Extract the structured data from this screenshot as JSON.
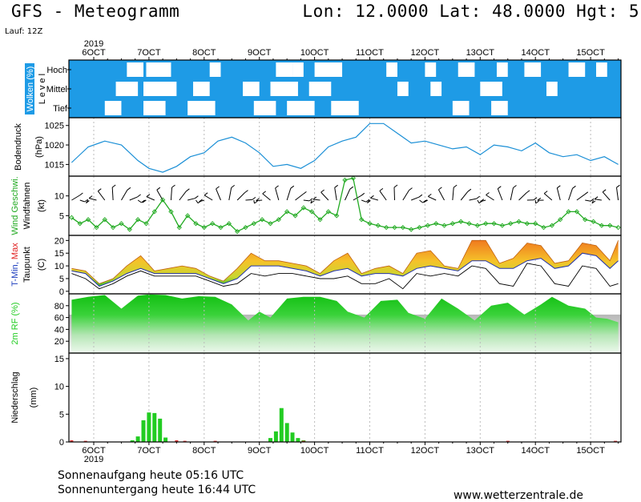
{
  "header": {
    "title": "GFS - Meteogramm",
    "location": "Lon: 12.0000 Lat: 48.0000 Hgt: 5",
    "run": "Lauf: 12Z"
  },
  "footer": {
    "sunrise": "Sonnenaufgang heute 05:16 UTC",
    "sunset": "Sonnenuntergang heute 16:44 UTC",
    "source": "www.wetterzentrale.de"
  },
  "colors": {
    "cloud_bg": "#1e9be6",
    "pressure_line": "#1a8fd6",
    "wind_speed": "#22aa22",
    "tmin_label": "#1f3fbf",
    "tmax_label": "#e02020",
    "humidity_fill": "#22cc22",
    "precip_bar": "#22cc22",
    "precip_red": "#dd3333",
    "panel_border": "#000000"
  },
  "chart_data": {
    "type": "line",
    "year": "2019",
    "x_labels": [
      "6OCT",
      "7OCT",
      "8OCT",
      "9OCT",
      "10OCT",
      "11OCT",
      "12OCT",
      "13OCT",
      "14OCT",
      "15OCT"
    ],
    "panels": [
      {
        "id": "clouds",
        "ylabel": "Wolken (%)",
        "ylabel2": "L e v e l",
        "levels": [
          "Hoch",
          "Mittel",
          "Tief"
        ],
        "cloud_gaps": {
          "Hoch": [
            [
              6.6,
              6.9
            ],
            [
              6.95,
              7.4
            ],
            [
              8.1,
              8.3
            ],
            [
              9.3,
              9.6
            ],
            [
              9.6,
              9.8
            ],
            [
              10.0,
              10.5
            ],
            [
              11.3,
              11.5
            ],
            [
              12.0,
              12.2
            ],
            [
              12.6,
              12.9
            ],
            [
              13.3,
              13.5
            ],
            [
              13.8,
              14.1
            ],
            [
              14.6,
              14.9
            ],
            [
              15.1,
              15.3
            ]
          ],
          "Mittel": [
            [
              6.4,
              6.8
            ],
            [
              6.9,
              7.5
            ],
            [
              7.8,
              8.1
            ],
            [
              8.7,
              9.0
            ],
            [
              9.2,
              9.7
            ],
            [
              9.9,
              10.3
            ],
            [
              11.5,
              11.7
            ],
            [
              12.1,
              12.3
            ],
            [
              13.0,
              13.4
            ],
            [
              14.2,
              14.4
            ]
          ],
          "Tief": [
            [
              6.2,
              6.5
            ],
            [
              6.9,
              7.3
            ],
            [
              7.7,
              8.2
            ],
            [
              8.9,
              9.3
            ],
            [
              9.5,
              10.0
            ],
            [
              10.3,
              10.8
            ],
            [
              12.5,
              12.8
            ],
            [
              13.2,
              13.5
            ]
          ]
        }
      },
      {
        "id": "pressure",
        "ylabel": "Bodendruck",
        "unit": "(hPa)",
        "ylim": [
          1012,
          1027
        ],
        "ticks": [
          1015,
          1020,
          1025
        ],
        "x": [
          5.6,
          5.9,
          6.2,
          6.5,
          6.8,
          7.0,
          7.25,
          7.5,
          7.75,
          8.0,
          8.25,
          8.5,
          8.75,
          9.0,
          9.25,
          9.5,
          9.75,
          10.0,
          10.25,
          10.5,
          10.75,
          11.0,
          11.25,
          11.5,
          11.75,
          12.0,
          12.25,
          12.5,
          12.75,
          13.0,
          13.25,
          13.5,
          13.75,
          14.0,
          14.25,
          14.5,
          14.75,
          15.0,
          15.25,
          15.5
        ],
        "values": [
          1015.5,
          1019.5,
          1021,
          1020,
          1016,
          1014,
          1013,
          1014.5,
          1017,
          1018,
          1021,
          1022,
          1020.5,
          1018,
          1014.5,
          1015,
          1014,
          1016,
          1019.5,
          1021,
          1022,
          1025.5,
          1025.5,
          1023,
          1020.5,
          1021,
          1020,
          1019,
          1019.5,
          1017.5,
          1020,
          1019.5,
          1018.5,
          1020.5,
          1018,
          1017,
          1017.5,
          1016,
          1017,
          1015
        ]
      },
      {
        "id": "wind",
        "ylabel": "Wind Geschwi.",
        "ylabel2": "Windfahnen",
        "unit": "(kt)",
        "ylim": [
          0,
          15
        ],
        "ticks": [
          5,
          10
        ],
        "x": [
          5.6,
          5.75,
          5.9,
          6.05,
          6.2,
          6.35,
          6.5,
          6.65,
          6.8,
          6.95,
          7.1,
          7.25,
          7.4,
          7.55,
          7.7,
          7.85,
          8.0,
          8.15,
          8.3,
          8.45,
          8.6,
          8.75,
          8.9,
          9.05,
          9.2,
          9.35,
          9.5,
          9.65,
          9.8,
          9.95,
          10.1,
          10.25,
          10.4,
          10.55,
          10.7,
          10.85,
          11.0,
          11.15,
          11.3,
          11.45,
          11.6,
          11.75,
          11.9,
          12.05,
          12.2,
          12.35,
          12.5,
          12.65,
          12.8,
          12.95,
          13.1,
          13.25,
          13.4,
          13.55,
          13.7,
          13.85,
          14.0,
          14.15,
          14.3,
          14.45,
          14.6,
          14.75,
          14.9,
          15.05,
          15.2,
          15.35,
          15.5
        ],
        "values": [
          4.5,
          3,
          4,
          2,
          4,
          2,
          3,
          1.5,
          4,
          3,
          6,
          9,
          6,
          2,
          5,
          3,
          2,
          3,
          2,
          3,
          1,
          2,
          3,
          4,
          3,
          4,
          6,
          5,
          7,
          6,
          4,
          6,
          5,
          14,
          14.5,
          4,
          3,
          2.5,
          2,
          2,
          2,
          1.5,
          2,
          2.5,
          3,
          2.5,
          3,
          3.5,
          3,
          2.5,
          3,
          3,
          2.5,
          3,
          3.5,
          3,
          3,
          2,
          2.5,
          4,
          6,
          6,
          4,
          3.5,
          2.5,
          2.5,
          2
        ]
      },
      {
        "id": "temperature",
        "ylabel": "T-Min, Max",
        "ylabel2": "Taupunkt",
        "unit": "(C)",
        "ylim": [
          -1,
          22
        ],
        "ticks": [
          0,
          5,
          10,
          15,
          20
        ],
        "x": [
          5.6,
          5.85,
          6.1,
          6.35,
          6.6,
          6.85,
          7.1,
          7.35,
          7.6,
          7.85,
          8.1,
          8.35,
          8.6,
          8.85,
          9.1,
          9.35,
          9.6,
          9.85,
          10.1,
          10.35,
          10.6,
          10.85,
          11.1,
          11.35,
          11.6,
          11.85,
          12.1,
          12.35,
          12.6,
          12.85,
          13.1,
          13.35,
          13.6,
          13.85,
          14.1,
          14.35,
          14.6,
          14.85,
          15.1,
          15.35,
          15.5
        ],
        "tmax": [
          9,
          8,
          3,
          5,
          10,
          14,
          8,
          9,
          10,
          9,
          6,
          4,
          9,
          15,
          12,
          12,
          11,
          10,
          7,
          12,
          15,
          7,
          9,
          10,
          7,
          15,
          16,
          10,
          9,
          20,
          20,
          11,
          13,
          19,
          18,
          11,
          12,
          19,
          18,
          12,
          20
        ],
        "tmin": [
          8,
          7,
          2,
          4,
          7,
          9,
          7,
          7,
          7,
          7,
          5,
          3,
          5,
          10,
          10,
          10,
          9,
          8,
          6,
          8,
          9,
          6,
          7,
          7,
          6,
          9,
          10,
          9,
          8,
          12,
          12,
          9,
          9,
          12,
          13,
          9,
          10,
          15,
          14,
          9,
          12
        ],
        "dewpoint": [
          7,
          5,
          1,
          3,
          6,
          8,
          6,
          6,
          6,
          6,
          4,
          2,
          3,
          7,
          6,
          7,
          7,
          6,
          5,
          5,
          6,
          3,
          3,
          5,
          1,
          7,
          6,
          7,
          6,
          10,
          9,
          3,
          2,
          11,
          10,
          3,
          2,
          10,
          9,
          2,
          3
        ]
      },
      {
        "id": "humidity",
        "ylabel": "2m RF (%)",
        "ylim": [
          0,
          100
        ],
        "ticks": [
          20,
          40,
          60,
          80
        ],
        "x": [
          5.6,
          5.9,
          6.2,
          6.5,
          6.8,
          7.0,
          7.3,
          7.6,
          7.9,
          8.2,
          8.5,
          8.8,
          9.0,
          9.2,
          9.5,
          9.8,
          10.1,
          10.4,
          10.6,
          10.9,
          11.2,
          11.5,
          11.7,
          12.0,
          12.3,
          12.6,
          12.9,
          13.2,
          13.5,
          13.8,
          14.1,
          14.3,
          14.6,
          14.9,
          15.1,
          15.3,
          15.5
        ],
        "values": [
          90,
          95,
          98,
          75,
          97,
          99,
          98,
          92,
          96,
          95,
          82,
          55,
          70,
          60,
          92,
          95,
          95,
          88,
          70,
          60,
          88,
          90,
          68,
          58,
          92,
          75,
          55,
          80,
          85,
          65,
          82,
          95,
          80,
          75,
          60,
          58,
          52
        ]
      },
      {
        "id": "precip",
        "ylabel": "Niederschlag",
        "unit": "(mm)",
        "ylim": [
          0,
          16
        ],
        "ticks": [
          0,
          5,
          10,
          15
        ],
        "x": [
          6.7,
          6.8,
          6.9,
          7.0,
          7.1,
          7.2,
          7.3,
          9.2,
          9.3,
          9.4,
          9.5,
          9.6,
          9.7,
          9.8
        ],
        "values": [
          0.3,
          1,
          3.9,
          5.3,
          5.2,
          4.2,
          0.8,
          0.7,
          1.9,
          6.1,
          3.4,
          1.7,
          0.7,
          0.3
        ],
        "red_x": [
          5.6,
          5.85,
          7.5,
          7.65,
          8.2,
          9.8,
          13.5,
          15.45
        ],
        "red_values": [
          0.3,
          0.2,
          0.3,
          0.2,
          0.2,
          0.2,
          0.2,
          0.2
        ]
      }
    ]
  }
}
